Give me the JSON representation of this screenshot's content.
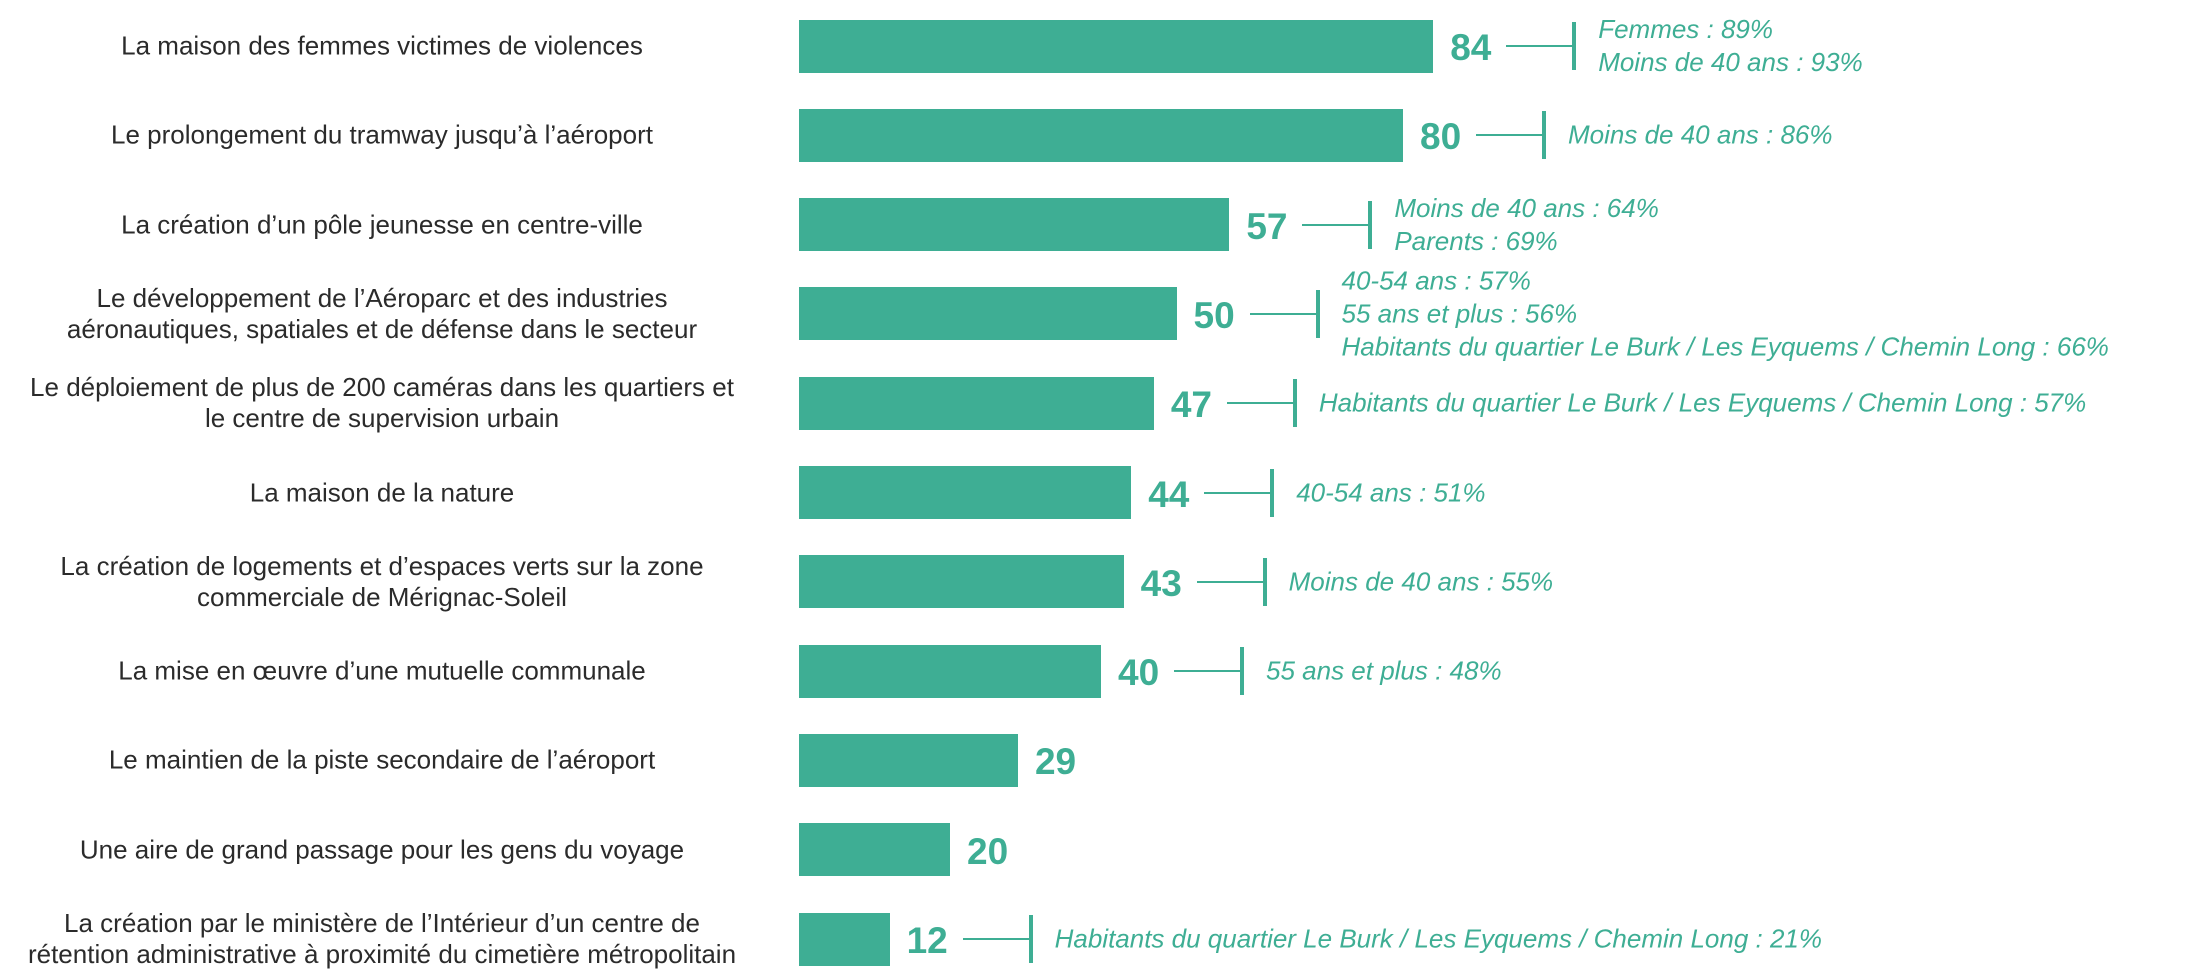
{
  "chart_data": {
    "type": "bar",
    "orientation": "horizontal",
    "color": "#3eae94",
    "categories": [
      "La maison des femmes victimes de violences",
      "Le prolongement du tramway jusqu’à l’aéroport",
      "La création d’un pôle jeunesse en centre-ville",
      "Le développement de l’Aéroparc et des industries\naéronautiques, spatiales et de défense dans le secteur",
      "Le déploiement de plus de 200 caméras dans les quartiers et\nle centre de supervision urbain",
      "La maison de la nature",
      "La création de logements et d’espaces verts sur la zone\ncommerciale de Mérignac-Soleil",
      "La mise en œuvre d’une mutuelle communale",
      "Le maintien de la piste secondaire de l’aéroport",
      "Une aire de grand passage pour les gens du voyage",
      "La création par le ministère de l’Intérieur d’un centre de\nrétention administrative à proximité du cimetière métropolitain"
    ],
    "values": [
      84,
      80,
      57,
      50,
      47,
      44,
      43,
      40,
      29,
      20,
      12
    ],
    "annotations": [
      [
        "Femmes : 89%",
        "Moins de 40 ans : 93%"
      ],
      [
        "Moins de 40 ans : 86%"
      ],
      [
        "Moins de 40 ans : 64%",
        "Parents : 69%"
      ],
      [
        "40-54 ans : 57%",
        "55 ans et plus : 56%",
        "Habitants du quartier Le Burk / Les Eyquems / Chemin Long : 66%"
      ],
      [
        "Habitants du quartier Le Burk / Les Eyquems / Chemin Long : 57%"
      ],
      [
        "40-54 ans : 51%"
      ],
      [
        "Moins de 40 ans : 55%"
      ],
      [
        "55 ans et plus : 48%"
      ],
      [],
      [],
      [
        "Habitants du quartier Le Burk / Les Eyquems / Chemin Long : 21%"
      ]
    ]
  }
}
